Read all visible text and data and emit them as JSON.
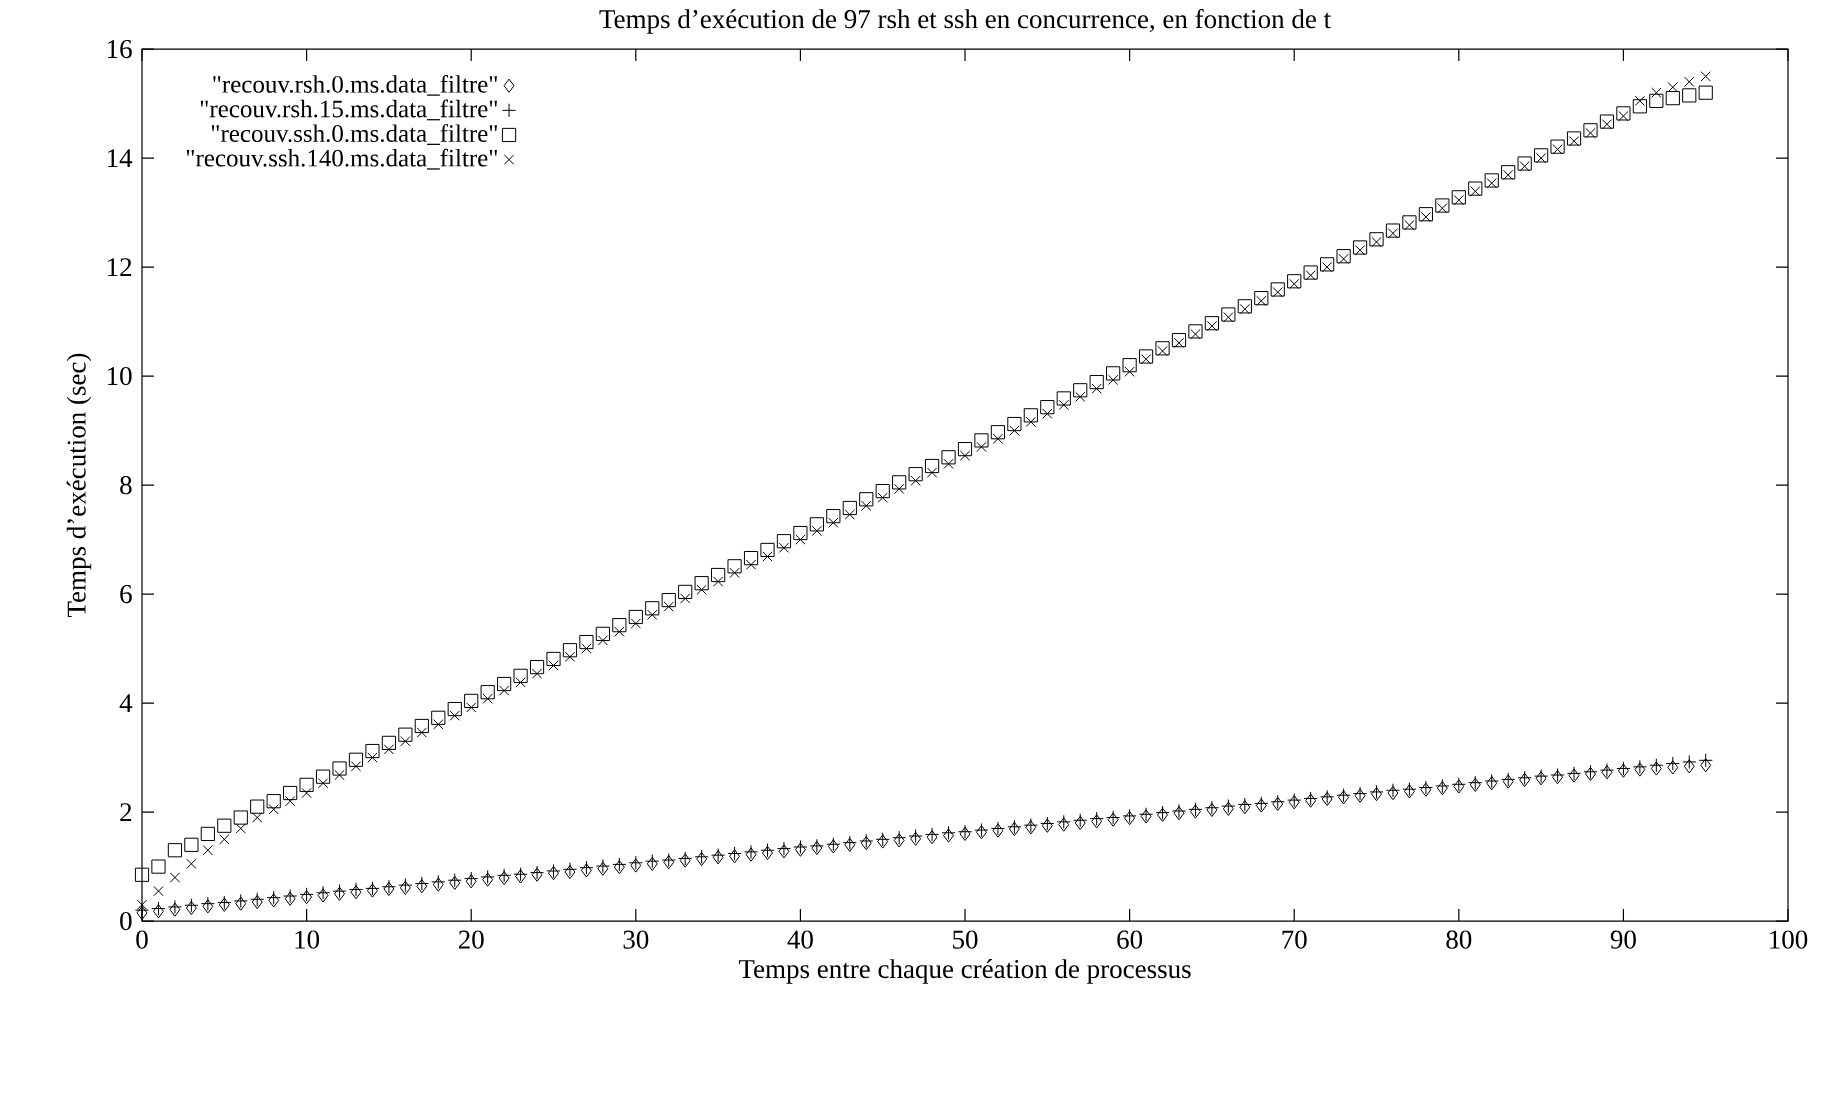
{
  "chart_data": {
    "type": "scatter",
    "title": "Temps d’exécution de 97 rsh et ssh en concurrence, en fonction de t",
    "xlabel": "Temps entre chaque création de processus",
    "ylabel": "Temps d’exécution (sec)",
    "xlim": [
      0,
      100
    ],
    "xticks": [
      0,
      10,
      20,
      30,
      40,
      50,
      60,
      70,
      80,
      90,
      100
    ],
    "ylim": [
      0,
      16
    ],
    "yticks": [
      0,
      2,
      4,
      6,
      8,
      10,
      12,
      14,
      16
    ],
    "grid": false,
    "legend": "top left",
    "x": [
      0,
      1,
      2,
      3,
      4,
      5,
      6,
      7,
      8,
      9,
      10,
      11,
      12,
      13,
      14,
      15,
      16,
      17,
      18,
      19,
      20,
      21,
      22,
      23,
      24,
      25,
      26,
      27,
      28,
      29,
      30,
      31,
      32,
      33,
      34,
      35,
      36,
      37,
      38,
      39,
      40,
      41,
      42,
      43,
      44,
      45,
      46,
      47,
      48,
      49,
      50,
      51,
      52,
      53,
      54,
      55,
      56,
      57,
      58,
      59,
      60,
      61,
      62,
      63,
      64,
      65,
      66,
      67,
      68,
      69,
      70,
      71,
      72,
      73,
      74,
      75,
      76,
      77,
      78,
      79,
      80,
      81,
      82,
      83,
      84,
      85,
      86,
      87,
      88,
      89,
      90,
      91,
      92,
      93,
      94,
      95
    ],
    "series": [
      {
        "name": "\"recouv.rsh.0.ms.data_filtre\"",
        "color": "#000000",
        "marker": "diamond",
        "values": [
          0.15,
          0.18,
          0.21,
          0.24,
          0.27,
          0.3,
          0.32,
          0.35,
          0.38,
          0.41,
          0.44,
          0.47,
          0.5,
          0.53,
          0.56,
          0.59,
          0.61,
          0.64,
          0.67,
          0.7,
          0.73,
          0.76,
          0.79,
          0.82,
          0.85,
          0.88,
          0.9,
          0.93,
          0.96,
          0.99,
          1.02,
          1.05,
          1.08,
          1.11,
          1.14,
          1.17,
          1.19,
          1.22,
          1.25,
          1.28,
          1.31,
          1.34,
          1.37,
          1.4,
          1.43,
          1.46,
          1.48,
          1.51,
          1.54,
          1.57,
          1.6,
          1.63,
          1.66,
          1.69,
          1.72,
          1.75,
          1.77,
          1.8,
          1.83,
          1.86,
          1.89,
          1.92,
          1.95,
          1.98,
          2.01,
          2.04,
          2.06,
          2.09,
          2.12,
          2.15,
          2.18,
          2.21,
          2.24,
          2.27,
          2.3,
          2.33,
          2.35,
          2.38,
          2.41,
          2.44,
          2.47,
          2.5,
          2.53,
          2.56,
          2.59,
          2.62,
          2.64,
          2.67,
          2.7,
          2.73,
          2.76,
          2.78,
          2.8,
          2.82,
          2.84,
          2.86
        ]
      },
      {
        "name": "\"recouv.rsh.15.ms.data_filtre\"",
        "color": "#000000",
        "marker": "cross",
        "values": [
          0.2,
          0.23,
          0.26,
          0.29,
          0.32,
          0.34,
          0.37,
          0.4,
          0.43,
          0.46,
          0.49,
          0.52,
          0.55,
          0.58,
          0.6,
          0.63,
          0.66,
          0.69,
          0.72,
          0.75,
          0.78,
          0.81,
          0.84,
          0.86,
          0.89,
          0.92,
          0.95,
          0.98,
          1.01,
          1.04,
          1.07,
          1.1,
          1.12,
          1.15,
          1.18,
          1.21,
          1.24,
          1.27,
          1.3,
          1.33,
          1.36,
          1.38,
          1.41,
          1.44,
          1.47,
          1.5,
          1.53,
          1.56,
          1.59,
          1.62,
          1.64,
          1.67,
          1.7,
          1.73,
          1.76,
          1.79,
          1.82,
          1.85,
          1.88,
          1.9,
          1.93,
          1.96,
          1.99,
          2.02,
          2.05,
          2.08,
          2.11,
          2.14,
          2.16,
          2.19,
          2.22,
          2.25,
          2.28,
          2.31,
          2.34,
          2.37,
          2.4,
          2.42,
          2.45,
          2.48,
          2.51,
          2.54,
          2.57,
          2.6,
          2.63,
          2.66,
          2.68,
          2.71,
          2.74,
          2.77,
          2.8,
          2.83,
          2.86,
          2.89,
          2.92,
          2.95
        ]
      },
      {
        "name": "\"recouv.ssh.0.ms.data_filtre\"",
        "color": "#000000",
        "marker": "square",
        "values": [
          0.85,
          1.0,
          1.3,
          1.4,
          1.6,
          1.75,
          1.9,
          2.1,
          2.2,
          2.35,
          2.5,
          2.65,
          2.8,
          2.96,
          3.12,
          3.27,
          3.42,
          3.58,
          3.73,
          3.89,
          4.04,
          4.2,
          4.35,
          4.5,
          4.66,
          4.81,
          4.97,
          5.12,
          5.27,
          5.43,
          5.58,
          5.74,
          5.89,
          6.04,
          6.2,
          6.35,
          6.51,
          6.66,
          6.81,
          6.97,
          7.12,
          7.28,
          7.43,
          7.58,
          7.74,
          7.89,
          8.05,
          8.2,
          8.35,
          8.51,
          8.66,
          8.82,
          8.97,
          9.12,
          9.28,
          9.43,
          9.59,
          9.74,
          9.89,
          10.05,
          10.2,
          10.36,
          10.51,
          10.66,
          10.82,
          10.97,
          11.13,
          11.28,
          11.43,
          11.59,
          11.74,
          11.9,
          12.05,
          12.2,
          12.36,
          12.51,
          12.67,
          12.82,
          12.97,
          13.13,
          13.28,
          13.44,
          13.59,
          13.74,
          13.9,
          14.05,
          14.21,
          14.36,
          14.51,
          14.67,
          14.82,
          14.95,
          15.05,
          15.1,
          15.15,
          15.2
        ]
      },
      {
        "name": "\"recouv.ssh.140.ms.data_filtre\"",
        "color": "#000000",
        "marker": "x",
        "values": [
          0.3,
          0.55,
          0.8,
          1.05,
          1.3,
          1.5,
          1.7,
          1.9,
          2.05,
          2.2,
          2.35,
          2.53,
          2.68,
          2.84,
          3.0,
          3.15,
          3.3,
          3.46,
          3.61,
          3.77,
          3.92,
          4.08,
          4.23,
          4.38,
          4.54,
          4.69,
          4.85,
          5.0,
          5.15,
          5.31,
          5.46,
          5.62,
          5.77,
          5.92,
          6.08,
          6.23,
          6.39,
          6.54,
          6.69,
          6.85,
          7.0,
          7.16,
          7.31,
          7.46,
          7.62,
          7.77,
          7.93,
          8.08,
          8.23,
          8.39,
          8.54,
          8.7,
          8.85,
          9.0,
          9.16,
          9.31,
          9.47,
          9.62,
          9.77,
          9.93,
          10.08,
          10.31,
          10.46,
          10.61,
          10.77,
          10.92,
          11.08,
          11.23,
          11.38,
          11.54,
          11.69,
          11.85,
          12.0,
          12.15,
          12.31,
          12.46,
          12.62,
          12.77,
          12.92,
          13.08,
          13.23,
          13.39,
          13.54,
          13.69,
          13.85,
          14.0,
          14.16,
          14.31,
          14.46,
          14.62,
          14.77,
          15.05,
          15.2,
          15.3,
          15.4,
          15.5
        ]
      }
    ]
  }
}
